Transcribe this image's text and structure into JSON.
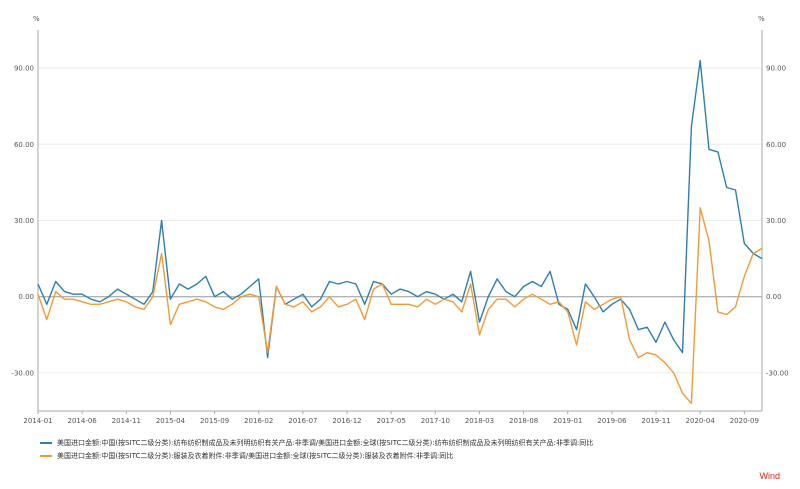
{
  "chart_data": {
    "type": "line",
    "unit_left": "%",
    "unit_right": "%",
    "yticks": [
      -30,
      0,
      30,
      60,
      90
    ],
    "ytick_labels": [
      "-30.00",
      "0.00",
      "30.00",
      "60.00",
      "90.00"
    ],
    "ylim": [
      -45,
      105
    ],
    "xtick_labels": [
      "2014-01",
      "2014-06",
      "2014-11",
      "2015-04",
      "2015-09",
      "2016-02",
      "2016-07",
      "2016-12",
      "2017-05",
      "2017-10",
      "2018-03",
      "2018-08",
      "2019-01",
      "2019-06",
      "2019-11",
      "2020-04",
      "2020-09"
    ],
    "x": [
      "2014-01",
      "2014-02",
      "2014-03",
      "2014-04",
      "2014-05",
      "2014-06",
      "2014-07",
      "2014-08",
      "2014-09",
      "2014-10",
      "2014-11",
      "2014-12",
      "2015-01",
      "2015-02",
      "2015-03",
      "2015-04",
      "2015-05",
      "2015-06",
      "2015-07",
      "2015-08",
      "2015-09",
      "2015-10",
      "2015-11",
      "2015-12",
      "2016-01",
      "2016-02",
      "2016-03",
      "2016-04",
      "2016-05",
      "2016-06",
      "2016-07",
      "2016-08",
      "2016-09",
      "2016-10",
      "2016-11",
      "2016-12",
      "2017-01",
      "2017-02",
      "2017-03",
      "2017-04",
      "2017-05",
      "2017-06",
      "2017-07",
      "2017-08",
      "2017-09",
      "2017-10",
      "2017-11",
      "2017-12",
      "2018-01",
      "2018-02",
      "2018-03",
      "2018-04",
      "2018-05",
      "2018-06",
      "2018-07",
      "2018-08",
      "2018-09",
      "2018-10",
      "2018-11",
      "2018-12",
      "2019-01",
      "2019-02",
      "2019-03",
      "2019-04",
      "2019-05",
      "2019-06",
      "2019-07",
      "2019-08",
      "2019-09",
      "2019-10",
      "2019-11",
      "2019-12",
      "2020-01",
      "2020-02",
      "2020-03",
      "2020-04",
      "2020-05",
      "2020-06",
      "2020-07",
      "2020-08",
      "2020-09",
      "2020-10",
      "2020-11"
    ],
    "series": [
      {
        "name": "美国进口金额:中国(按SITC二级分类):纺布纺织制成品及未列明纺织有关产品:非季调/美国进口金额:全球(按SITC二级分类):纺布纺织制成品及未列明纺织有关产品:非季调:同比",
        "color": "#2e7fae",
        "values": [
          5,
          -3,
          6,
          2,
          1,
          1,
          -1,
          -2,
          0,
          3,
          1,
          -1,
          -3,
          2,
          30,
          -1,
          5,
          3,
          5,
          8,
          0,
          2,
          -1,
          1,
          4,
          7,
          -24,
          4,
          -3,
          -1,
          1,
          -4,
          -1,
          6,
          5,
          6,
          5,
          -3,
          6,
          5,
          1,
          3,
          2,
          0,
          2,
          1,
          -1,
          1,
          -2,
          10,
          -10,
          0,
          7,
          2,
          0,
          4,
          6,
          4,
          10,
          -3,
          -5,
          -13,
          5,
          0,
          -6,
          -3,
          -1,
          -5,
          -13,
          -12,
          -18,
          -10,
          -17,
          -22,
          67,
          93,
          58,
          57,
          43,
          42,
          21,
          17,
          15
        ]
      },
      {
        "name": "美国进口金额:中国(按SITC二级分类):服装及衣着附件:非季调/美国进口金额:全球(按SITC二级分类):服装及衣着附件:非季调:同比",
        "color": "#f39a35",
        "values": [
          1,
          -9,
          2,
          -1,
          -1,
          -2,
          -3,
          -3,
          -2,
          -1,
          -2,
          -4,
          -5,
          0,
          17,
          -11,
          -3,
          -2,
          -1,
          -2,
          -4,
          -5,
          -3,
          0,
          1,
          0,
          -22,
          4,
          -3,
          -4,
          -2,
          -6,
          -4,
          0,
          -4,
          -3,
          -1,
          -9,
          3,
          5,
          -3,
          -3,
          -3,
          -4,
          -1,
          -3,
          -1,
          -2,
          -6,
          5,
          -15,
          -5,
          -1,
          -1,
          -4,
          -1,
          1,
          -1,
          -3,
          -2,
          -6,
          -19,
          -2,
          -5,
          -3,
          -1,
          0,
          -17,
          -24,
          -22,
          -23,
          -26,
          -30,
          -38,
          -42,
          35,
          22,
          -6,
          -7,
          -4,
          8,
          17,
          19
        ]
      }
    ]
  },
  "brand": "Wind"
}
